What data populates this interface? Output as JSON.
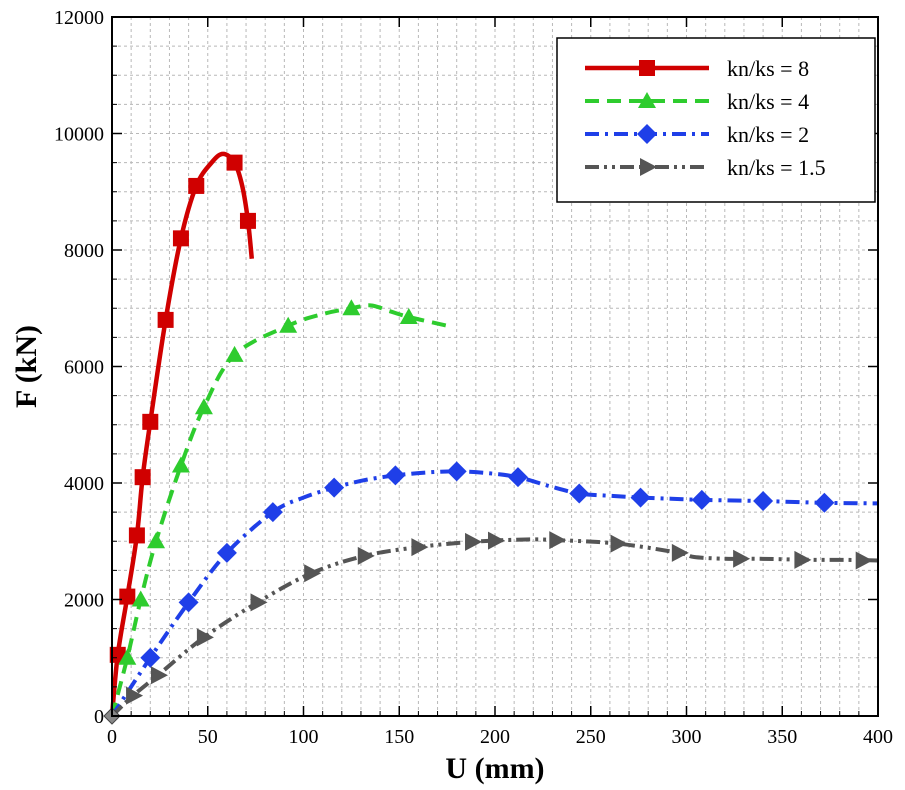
{
  "chart_data": {
    "type": "line",
    "xlabel": "U (mm)",
    "ylabel": "F (kN)",
    "xlim": [
      0,
      400
    ],
    "ylim": [
      0,
      12000
    ],
    "x_ticks": [
      0,
      50,
      100,
      150,
      200,
      250,
      300,
      350,
      400
    ],
    "y_ticks": [
      0,
      2000,
      4000,
      6000,
      8000,
      10000,
      12000
    ],
    "x_minor_step": 10,
    "y_minor_step": 500,
    "grid": true,
    "legend_position": "top-right",
    "series": [
      {
        "name": "kn/ks = 8",
        "color": "#d00000",
        "dash": "solid",
        "marker": "square",
        "x": [
          0,
          3,
          8,
          13,
          16,
          20,
          28,
          36,
          44,
          52,
          58,
          64,
          68,
          71,
          73
        ],
        "y": [
          0,
          1050,
          2050,
          3100,
          4100,
          5050,
          6800,
          8200,
          9100,
          9500,
          9650,
          9500,
          9100,
          8500,
          7850
        ],
        "marker_x": [
          3,
          8,
          13,
          16,
          20,
          28,
          36,
          44,
          64,
          71
        ],
        "marker_y": [
          1050,
          2050,
          3100,
          4100,
          5050,
          6800,
          8200,
          9100,
          9500,
          8500
        ]
      },
      {
        "name": "kn/ks = 4",
        "color": "#2ecc2e",
        "dash": "dashed",
        "marker": "triangle",
        "x": [
          0,
          8,
          15,
          23,
          36,
          48,
          64,
          92,
          110,
          125,
          135,
          145,
          155,
          175
        ],
        "y": [
          0,
          1000,
          2000,
          3000,
          4300,
          5300,
          6200,
          6700,
          6900,
          7000,
          7050,
          6950,
          6850,
          6700
        ],
        "marker_x": [
          8,
          15,
          23,
          36,
          48,
          64,
          92,
          125,
          155
        ],
        "marker_y": [
          1000,
          2000,
          3000,
          4300,
          5300,
          6200,
          6700,
          7000,
          6850
        ]
      },
      {
        "name": "kn/ks = 2",
        "color": "#1f3fe8",
        "dash": "dashdot",
        "marker": "diamond",
        "x": [
          0,
          20,
          40,
          60,
          84,
          100,
          116,
          132,
          148,
          164,
          180,
          196,
          212,
          228,
          244,
          260,
          276,
          292,
          308,
          340,
          372,
          400
        ],
        "y": [
          0,
          1000,
          1950,
          2800,
          3500,
          3750,
          3920,
          4050,
          4130,
          4180,
          4200,
          4170,
          4100,
          3950,
          3820,
          3780,
          3750,
          3730,
          3710,
          3690,
          3660,
          3650
        ],
        "marker_x": [
          20,
          40,
          60,
          84,
          116,
          148,
          180,
          212,
          244,
          276,
          308,
          340,
          372
        ],
        "marker_y": [
          1000,
          1950,
          2800,
          3500,
          3920,
          4130,
          4200,
          4100,
          3820,
          3750,
          3710,
          3690,
          3660
        ]
      },
      {
        "name": "kn/ks = 1.5",
        "color": "#555555",
        "dash": "dashdotdot",
        "marker": "right-triangle",
        "x": [
          0,
          11,
          24,
          48,
          76,
          104,
          132,
          160,
          188,
          216,
          232,
          264,
          296,
          304,
          320,
          336,
          352,
          368,
          384,
          400
        ],
        "y": [
          0,
          350,
          700,
          1350,
          1950,
          2450,
          2750,
          2900,
          2990,
          3030,
          3020,
          2960,
          2800,
          2730,
          2700,
          2700,
          2690,
          2680,
          2680,
          2670
        ],
        "marker_x": [
          11,
          24,
          48,
          76,
          104,
          132,
          160,
          188,
          200,
          232,
          264,
          296,
          328,
          360,
          392
        ],
        "marker_y": [
          350,
          700,
          1350,
          1950,
          2450,
          2750,
          2900,
          2990,
          3010,
          3020,
          2960,
          2800,
          2700,
          2680,
          2670
        ]
      }
    ]
  }
}
